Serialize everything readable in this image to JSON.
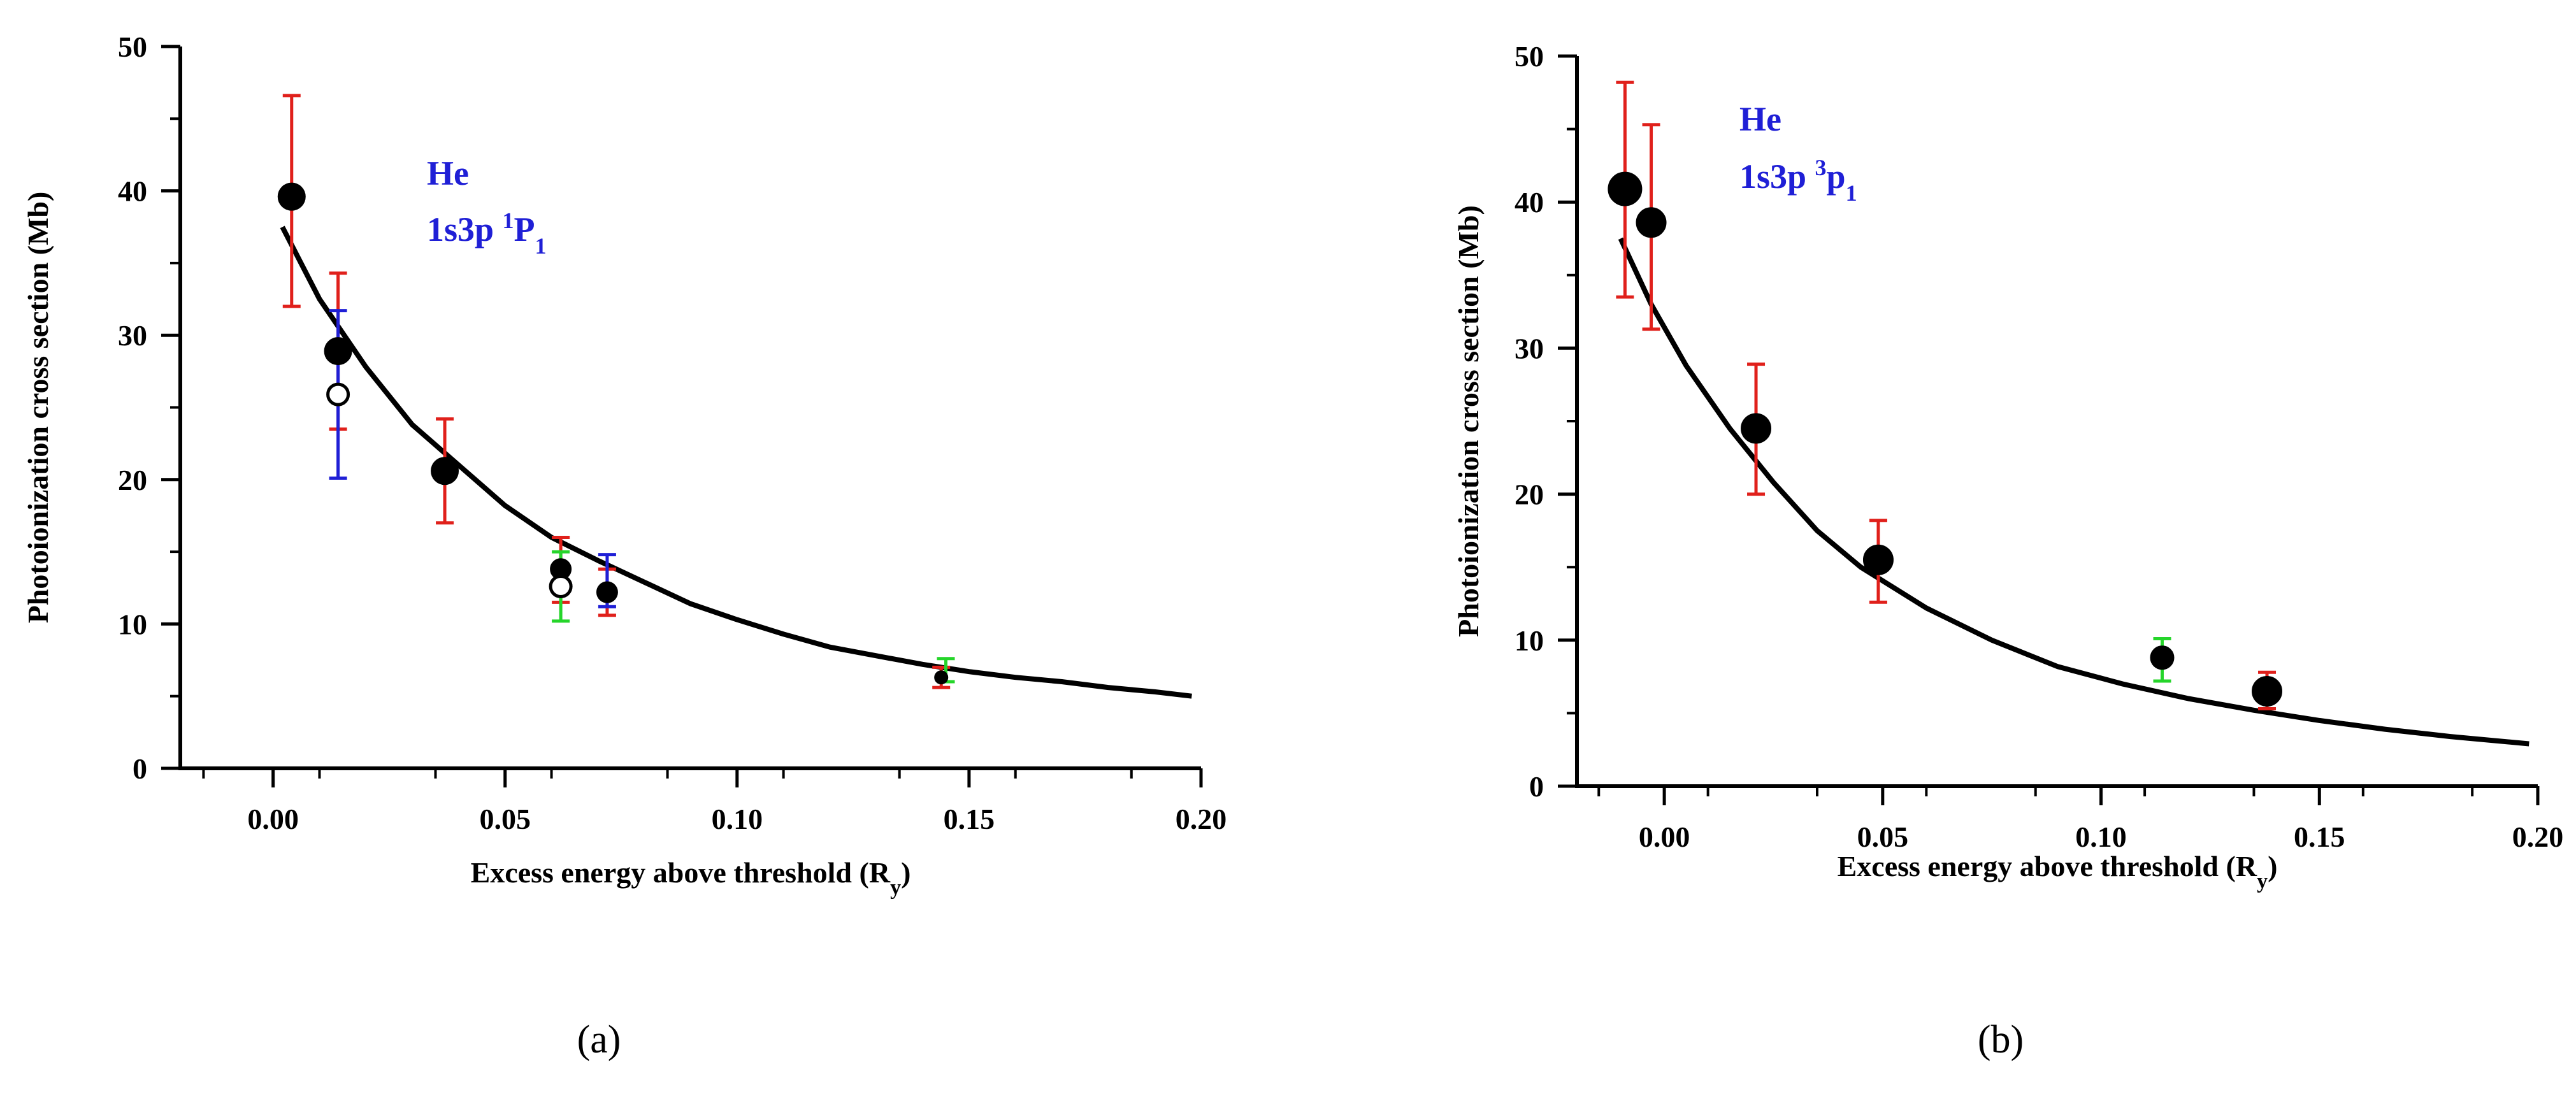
{
  "chart_data": [
    {
      "type": "scatter",
      "panel_label": "(a)",
      "panel_letter": "a",
      "xlabel": "Excess energy above threshold (R",
      "xlabel_sub": "y",
      "ylabel": "Photoionization cross section (Mb)",
      "xlim": [
        -0.02,
        0.2
      ],
      "ylim": [
        0,
        50
      ],
      "xticks": [
        0.0,
        0.05,
        0.1,
        0.15,
        0.2
      ],
      "xtick_labels": [
        "0.00",
        "0.05",
        "0.10",
        "0.15",
        "0.20"
      ],
      "yticks": [
        0,
        10,
        20,
        30,
        40,
        50
      ],
      "ytick_labels": [
        "0",
        "10",
        "20",
        "30",
        "40",
        "50"
      ],
      "annotation": {
        "line1": "He",
        "line2_main": "1s3p",
        "sup": "1",
        "letter": "P",
        "sub": "1",
        "color": "#1f1fd6"
      },
      "series": [
        {
          "name": "theory curve",
          "style": "line",
          "color": "#000000",
          "x": [
            0.002,
            0.01,
            0.02,
            0.03,
            0.04,
            0.05,
            0.06,
            0.07,
            0.08,
            0.09,
            0.1,
            0.11,
            0.12,
            0.13,
            0.14,
            0.15,
            0.16,
            0.17,
            0.18,
            0.19,
            0.198
          ],
          "y": [
            37.5,
            32.5,
            27.8,
            23.8,
            21.0,
            18.2,
            16.0,
            14.4,
            12.9,
            11.4,
            10.3,
            9.3,
            8.4,
            7.8,
            7.2,
            6.7,
            6.3,
            6.0,
            5.6,
            5.3,
            5.0
          ]
        },
        {
          "name": "filled circles",
          "style": "filled",
          "color": "#000000",
          "points": [
            {
              "x": 0.004,
              "y": 39.6,
              "size": "large",
              "err_low": 32.0,
              "err_high": 46.6,
              "err_color": "#e0201b"
            },
            {
              "x": 0.014,
              "y": 28.9,
              "size": "large",
              "err_low": 23.5,
              "err_high": 34.3,
              "err_color": "#e0201b"
            },
            {
              "x": 0.037,
              "y": 20.6,
              "size": "large",
              "err_low": 17.0,
              "err_high": 24.2,
              "err_color": "#e0201b"
            },
            {
              "x": 0.062,
              "y": 13.8,
              "size": "medium",
              "err_low": 11.5,
              "err_high": 16.0,
              "err_color": "#e0201b"
            },
            {
              "x": 0.072,
              "y": 12.2,
              "size": "medium",
              "err_low": 10.6,
              "err_high": 13.8,
              "err_color": "#e0201b"
            },
            {
              "x": 0.144,
              "y": 6.3,
              "size": "small",
              "err_low": 5.6,
              "err_high": 7.0,
              "err_color": "#e0201b"
            }
          ]
        },
        {
          "name": "open circles",
          "style": "open",
          "color": "#000000",
          "points": [
            {
              "x": 0.014,
              "y": 25.9,
              "size": "medium",
              "err_low": 20.1,
              "err_high": 31.7,
              "err_color": "#1f1fd6"
            },
            {
              "x": 0.062,
              "y": 12.6,
              "size": "medium",
              "err_low": 10.2,
              "err_high": 15.0,
              "err_color": "#25d52a"
            }
          ]
        },
        {
          "name": "additional error bars",
          "style": "errorbar-only",
          "points": [
            {
              "x": 0.072,
              "err_low": 11.2,
              "err_high": 14.8,
              "err_color": "#1f1fd6"
            },
            {
              "x": 0.145,
              "err_low": 6.0,
              "err_high": 7.6,
              "err_color": "#25d52a"
            }
          ]
        }
      ]
    },
    {
      "type": "scatter",
      "panel_label": "(b)",
      "panel_letter": "b",
      "xlabel": "Excess energy above threshold (R",
      "xlabel_sub": "y",
      "ylabel": "Photoionization cross section (Mb)",
      "xlim": [
        -0.02,
        0.2
      ],
      "ylim": [
        0,
        50
      ],
      "xticks": [
        0.0,
        0.05,
        0.1,
        0.15,
        0.2
      ],
      "xtick_labels": [
        "0.00",
        "0.05",
        "0.10",
        "0.15",
        "0.20"
      ],
      "yticks": [
        0,
        10,
        20,
        30,
        40,
        50
      ],
      "ytick_labels": [
        "0",
        "10",
        "20",
        "30",
        "40",
        "50"
      ],
      "annotation": {
        "line1": "He",
        "line2_main": "1s3p",
        "sup": "3",
        "letter": "p",
        "sub": "1",
        "color": "#1f1fd6"
      },
      "series": [
        {
          "name": "theory curve",
          "style": "line",
          "color": "#000000",
          "x": [
            -0.01,
            -0.003,
            0.005,
            0.015,
            0.025,
            0.035,
            0.045,
            0.06,
            0.075,
            0.09,
            0.105,
            0.12,
            0.135,
            0.15,
            0.165,
            0.18,
            0.198
          ],
          "y": [
            37.5,
            33.0,
            28.8,
            24.5,
            20.8,
            17.5,
            15.0,
            12.2,
            10.0,
            8.2,
            7.0,
            6.0,
            5.2,
            4.5,
            3.9,
            3.4,
            2.9
          ]
        },
        {
          "name": "filled circles",
          "style": "filled",
          "color": "#000000",
          "points": [
            {
              "x": -0.009,
              "y": 40.9,
              "size": "xlarge",
              "err_low": 33.5,
              "err_high": 48.2,
              "err_color": "#e0201b"
            },
            {
              "x": -0.003,
              "y": 38.6,
              "size": "large",
              "err_low": 31.3,
              "err_high": 45.3,
              "err_color": "#e0201b"
            },
            {
              "x": 0.021,
              "y": 24.5,
              "size": "large",
              "err_low": 20.0,
              "err_high": 28.9,
              "err_color": "#e0201b"
            },
            {
              "x": 0.049,
              "y": 15.5,
              "size": "large",
              "err_low": 12.6,
              "err_high": 18.2,
              "err_color": "#e0201b"
            },
            {
              "x": 0.114,
              "y": 8.8,
              "size": "medium",
              "err_low": 7.2,
              "err_high": 10.1,
              "err_color": "#25d52a"
            },
            {
              "x": 0.138,
              "y": 6.5,
              "size": "large",
              "err_low": 5.3,
              "err_high": 7.8,
              "err_color": "#e0201b"
            }
          ]
        }
      ]
    }
  ]
}
